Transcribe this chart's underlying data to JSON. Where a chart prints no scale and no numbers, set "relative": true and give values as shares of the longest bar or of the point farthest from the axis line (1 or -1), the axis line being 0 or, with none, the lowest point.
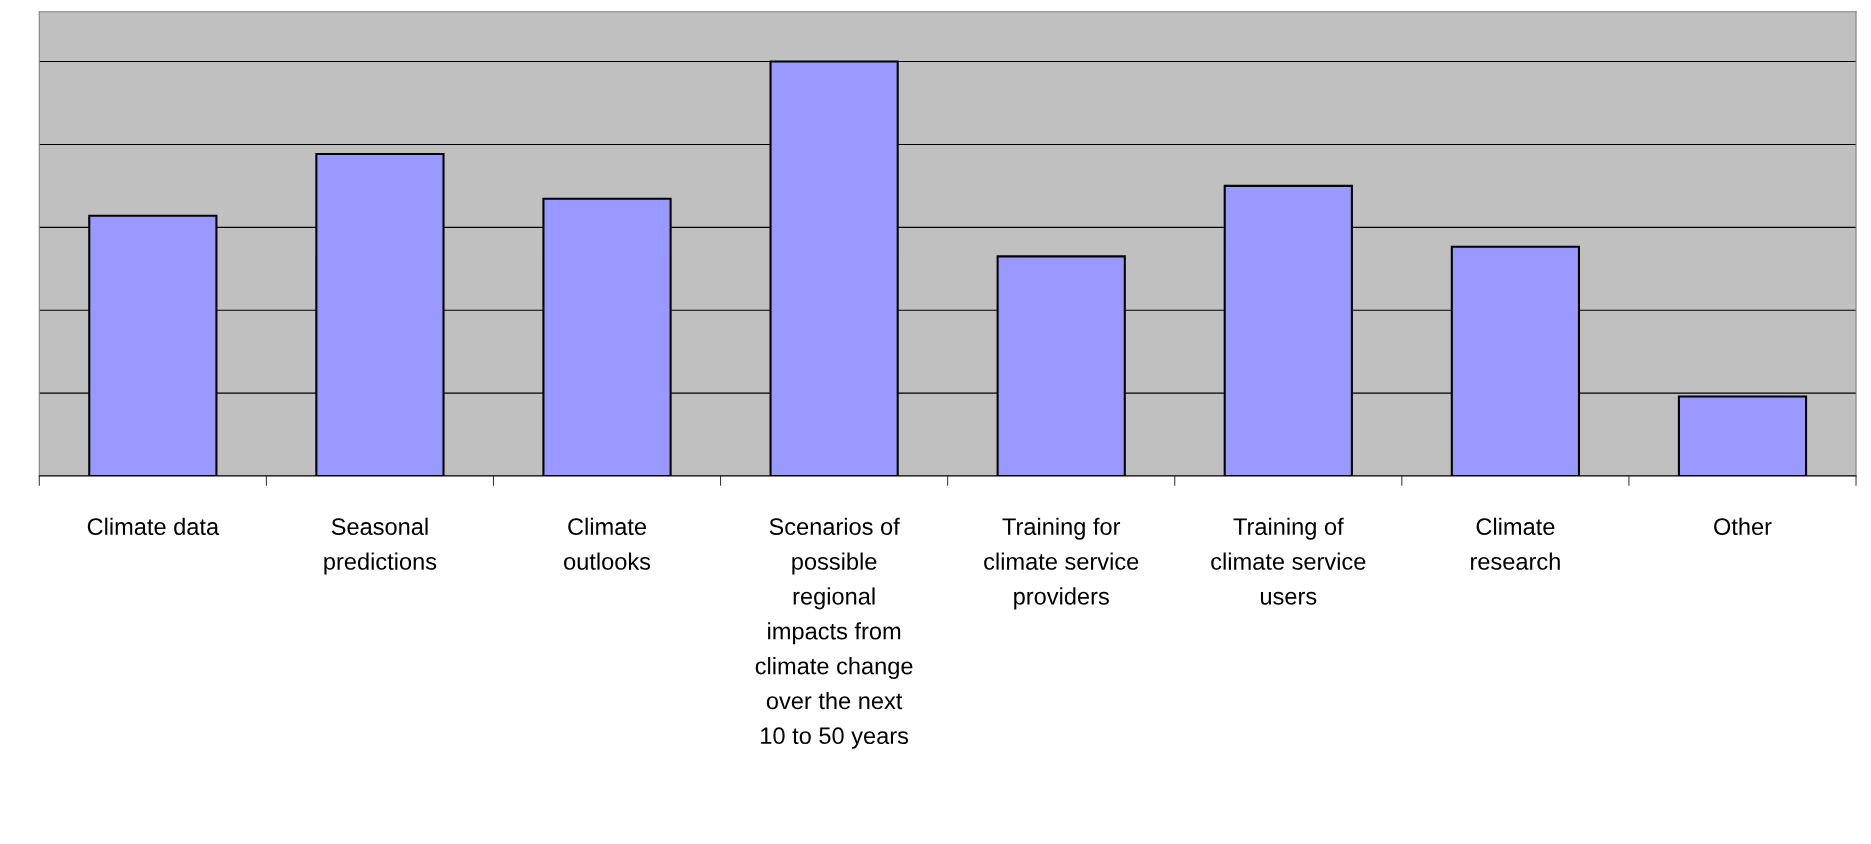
{
  "chart_data": {
    "type": "bar",
    "relative": true,
    "categories": [
      "Climate data",
      "Seasonal\npredictions",
      "Climate\noutlooks",
      "Scenarios of\npossible\nregional\nimpacts from\nclimate change\nover the next\n10 to 50 years",
      "Training for\nclimate service\nproviders",
      "Training of\nclimate service\nusers",
      "Climate\nresearch",
      "Other"
    ],
    "values": [
      0.628,
      0.777,
      0.669,
      1,
      0.53,
      0.7,
      0.553,
      0.192
    ],
    "color": "#9999ff",
    "grid": "y"
  }
}
